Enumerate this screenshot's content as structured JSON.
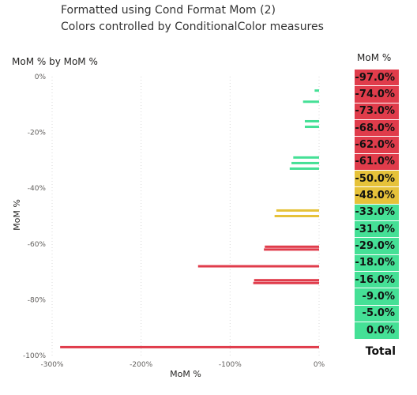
{
  "header": {
    "line1": "Formatted using Cond Format Mom (2)",
    "line2": "Colors controlled by ConditionalColor measures"
  },
  "colors": {
    "red": "#e03c4b",
    "yellow": "#e6c23a",
    "green": "#45e096",
    "axis_text": "#605e5c"
  },
  "chart_data": {
    "type": "bar",
    "title": "MoM % by MoM %",
    "xlabel": "MoM %",
    "ylabel": "MoM %",
    "x_ticks": [
      "-300%",
      "-200%",
      "-100%",
      "0%"
    ],
    "y_ticks": [
      "0%",
      "-20%",
      "-40%",
      "-60%",
      "-80%",
      "-100%"
    ],
    "xlim": [
      -300,
      0
    ],
    "ylim": [
      -100,
      0
    ],
    "bars": [
      {
        "y": -5,
        "x": -5,
        "color": "green"
      },
      {
        "y": -9,
        "x": -18,
        "color": "green"
      },
      {
        "y": -16,
        "x": -16,
        "color": "green"
      },
      {
        "y": -18,
        "x": -16,
        "color": "green"
      },
      {
        "y": -29,
        "x": -29,
        "color": "green"
      },
      {
        "y": -31,
        "x": -31,
        "color": "green"
      },
      {
        "y": -33,
        "x": -33,
        "color": "green"
      },
      {
        "y": -48,
        "x": -48,
        "color": "yellow"
      },
      {
        "y": -50,
        "x": -50,
        "color": "yellow"
      },
      {
        "y": -61,
        "x": -61,
        "color": "red"
      },
      {
        "y": -62,
        "x": -62,
        "color": "red"
      },
      {
        "y": -68,
        "x": -136,
        "color": "red"
      },
      {
        "y": -73,
        "x": -73,
        "color": "red"
      },
      {
        "y": -74,
        "x": -74,
        "color": "red"
      },
      {
        "y": -97,
        "x": -291,
        "color": "red"
      }
    ]
  },
  "table": {
    "header": "MoM %",
    "rows": [
      {
        "value": "-97.0%",
        "color": "red"
      },
      {
        "value": "-74.0%",
        "color": "red"
      },
      {
        "value": "-73.0%",
        "color": "red"
      },
      {
        "value": "-68.0%",
        "color": "red"
      },
      {
        "value": "-62.0%",
        "color": "red"
      },
      {
        "value": "-61.0%",
        "color": "red"
      },
      {
        "value": "-50.0%",
        "color": "yellow"
      },
      {
        "value": "-48.0%",
        "color": "yellow"
      },
      {
        "value": "-33.0%",
        "color": "green"
      },
      {
        "value": "-31.0%",
        "color": "green"
      },
      {
        "value": "-29.0%",
        "color": "green"
      },
      {
        "value": "-18.0%",
        "color": "green"
      },
      {
        "value": "-16.0%",
        "color": "green"
      },
      {
        "value": "-9.0%",
        "color": "green"
      },
      {
        "value": "-5.0%",
        "color": "green"
      },
      {
        "value": "0.0%",
        "color": "green"
      }
    ],
    "total_label": "Total"
  }
}
